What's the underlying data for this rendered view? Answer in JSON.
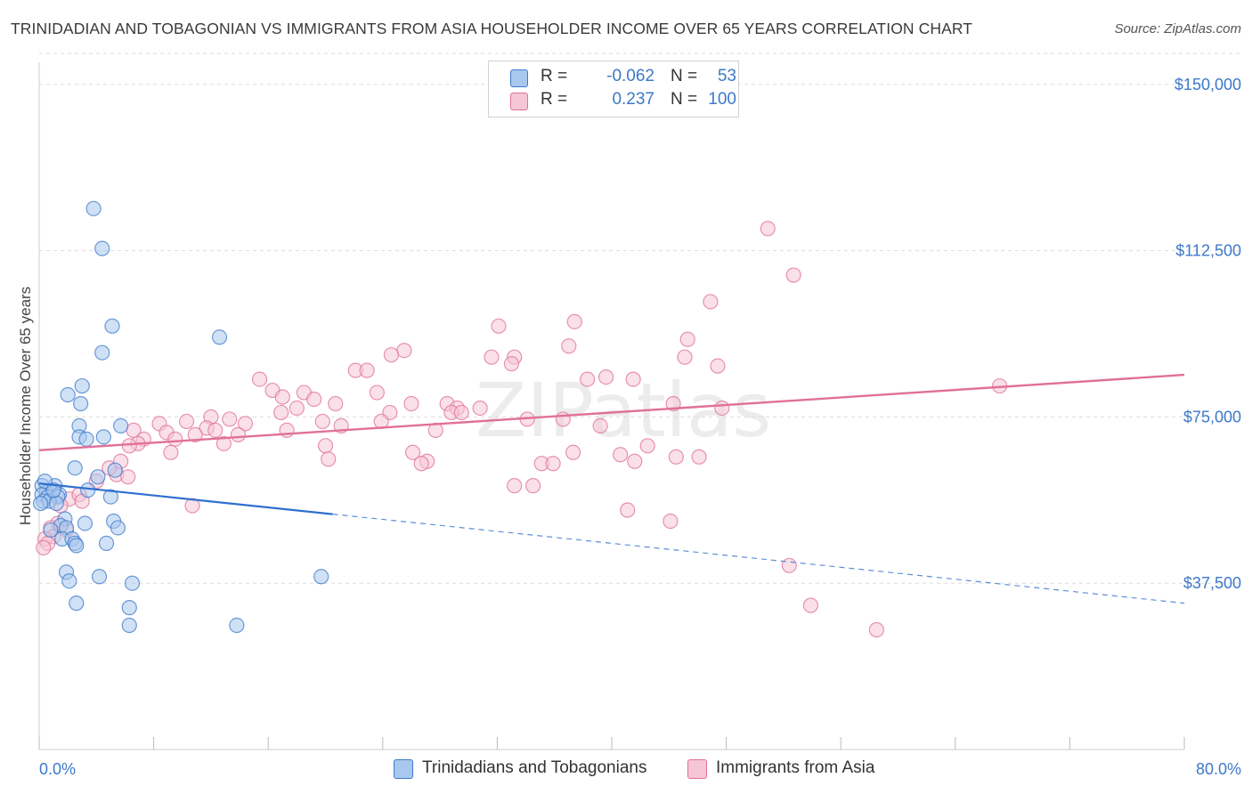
{
  "title": "TRINIDADIAN AND TOBAGONIAN VS IMMIGRANTS FROM ASIA HOUSEHOLDER INCOME OVER 65 YEARS CORRELATION CHART",
  "source": "Source: ZipAtlas.com",
  "watermark": "ZIPatlas",
  "colors": {
    "blue": "#3d79c9",
    "blue_fill": "#a9c8ef",
    "pink": "#e0709a",
    "pink_fill": "#f6b8cc"
  },
  "legend": {
    "rows": [
      {
        "r_label": "R =",
        "r_value": "-0.062",
        "n_label": "N =",
        "n_value": "53"
      },
      {
        "r_label": "R =",
        "r_value": "0.237",
        "n_label": "N =",
        "n_value": "100"
      }
    ]
  },
  "bottom_legend": {
    "series1": "Trinidadians and Tobagonians",
    "series2": "Immigrants from Asia"
  },
  "chart_data": {
    "type": "scatter",
    "title": "TRINIDADIAN AND TOBAGONIAN VS IMMIGRANTS FROM ASIA HOUSEHOLDER INCOME OVER 65 YEARS CORRELATION CHART",
    "xlabel": "",
    "ylabel": "Householder Income Over 65 years",
    "xlim": [
      0,
      80
    ],
    "ylim": [
      0,
      157000
    ],
    "x_tick_labels": [
      "0.0%",
      "80.0%"
    ],
    "y_ticks": [
      37500,
      75000,
      112500,
      150000
    ],
    "y_tick_labels": [
      "$37,500",
      "$75,000",
      "$112,500",
      "$150,000"
    ],
    "grid": true,
    "series": [
      {
        "name": "Trinidadians and Tobagonians",
        "color": "#3d79c9",
        "r": -0.062,
        "n": 53,
        "trend": {
          "x0": 0,
          "y0": 60000,
          "x1": 80,
          "y1": 33000,
          "solid_until": 20.5
        },
        "points": [
          [
            3.8,
            122000
          ],
          [
            4.4,
            113000
          ],
          [
            5.1,
            95500
          ],
          [
            4.4,
            89500
          ],
          [
            12.6,
            93000
          ],
          [
            3.0,
            82000
          ],
          [
            2.0,
            80000
          ],
          [
            2.9,
            78000
          ],
          [
            2.8,
            73000
          ],
          [
            2.8,
            70500
          ],
          [
            4.5,
            70500
          ],
          [
            3.3,
            70000
          ],
          [
            5.7,
            73000
          ],
          [
            2.5,
            63500
          ],
          [
            5.3,
            63000
          ],
          [
            4.1,
            61500
          ],
          [
            0.2,
            59500
          ],
          [
            1.1,
            59500
          ],
          [
            0.5,
            58000
          ],
          [
            0.9,
            58000
          ],
          [
            0.2,
            57500
          ],
          [
            1.4,
            57500
          ],
          [
            0.6,
            57000
          ],
          [
            1.3,
            57000
          ],
          [
            0.3,
            56000
          ],
          [
            0.7,
            56000
          ],
          [
            3.4,
            58500
          ],
          [
            5.0,
            57000
          ],
          [
            0.1,
            55500
          ],
          [
            1.2,
            55500
          ],
          [
            1.8,
            52000
          ],
          [
            5.2,
            51500
          ],
          [
            3.2,
            51000
          ],
          [
            1.5,
            50500
          ],
          [
            1.9,
            50000
          ],
          [
            5.5,
            50000
          ],
          [
            0.8,
            49500
          ],
          [
            1.6,
            47500
          ],
          [
            2.3,
            47500
          ],
          [
            2.5,
            46500
          ],
          [
            4.7,
            46500
          ],
          [
            2.6,
            46000
          ],
          [
            1.9,
            40000
          ],
          [
            4.2,
            39000
          ],
          [
            19.7,
            39000
          ],
          [
            2.1,
            38000
          ],
          [
            6.5,
            37500
          ],
          [
            2.6,
            33000
          ],
          [
            6.3,
            32000
          ],
          [
            6.3,
            28000
          ],
          [
            13.8,
            28000
          ],
          [
            0.4,
            60500
          ],
          [
            1.0,
            58500
          ]
        ]
      },
      {
        "name": "Immigrants from Asia",
        "color": "#e0709a",
        "r": 0.237,
        "n": 100,
        "trend": {
          "x0": 0,
          "y0": 67500,
          "x1": 80,
          "y1": 84500
        },
        "points": [
          [
            50.9,
            117500
          ],
          [
            52.7,
            107000
          ],
          [
            46.9,
            101000
          ],
          [
            32.1,
            95500
          ],
          [
            37.4,
            96500
          ],
          [
            25.5,
            90000
          ],
          [
            37.0,
            91000
          ],
          [
            45.3,
            92500
          ],
          [
            24.6,
            89000
          ],
          [
            31.6,
            88500
          ],
          [
            33.2,
            88500
          ],
          [
            45.1,
            88500
          ],
          [
            33.0,
            87000
          ],
          [
            47.4,
            86500
          ],
          [
            22.1,
            85500
          ],
          [
            22.9,
            85500
          ],
          [
            41.5,
            83500
          ],
          [
            15.4,
            83500
          ],
          [
            16.3,
            81000
          ],
          [
            18.5,
            80500
          ],
          [
            19.2,
            79000
          ],
          [
            17.0,
            79500
          ],
          [
            23.6,
            80500
          ],
          [
            38.3,
            83500
          ],
          [
            26.0,
            78000
          ],
          [
            20.7,
            78000
          ],
          [
            28.5,
            78000
          ],
          [
            29.2,
            77000
          ],
          [
            30.8,
            77000
          ],
          [
            24.5,
            76000
          ],
          [
            44.3,
            78000
          ],
          [
            47.7,
            77000
          ],
          [
            16.9,
            76000
          ],
          [
            13.3,
            74500
          ],
          [
            12.0,
            75000
          ],
          [
            14.4,
            73500
          ],
          [
            19.8,
            74000
          ],
          [
            21.1,
            73000
          ],
          [
            23.9,
            74000
          ],
          [
            28.8,
            76000
          ],
          [
            34.1,
            74500
          ],
          [
            36.6,
            74500
          ],
          [
            10.3,
            74000
          ],
          [
            11.7,
            72500
          ],
          [
            8.4,
            73500
          ],
          [
            6.6,
            72000
          ],
          [
            7.3,
            70000
          ],
          [
            6.9,
            69000
          ],
          [
            8.9,
            71500
          ],
          [
            9.5,
            70000
          ],
          [
            10.9,
            71000
          ],
          [
            12.3,
            72000
          ],
          [
            13.9,
            71000
          ],
          [
            17.3,
            72000
          ],
          [
            6.3,
            68500
          ],
          [
            9.2,
            67000
          ],
          [
            12.9,
            69000
          ],
          [
            20.0,
            68500
          ],
          [
            26.1,
            67000
          ],
          [
            27.1,
            65000
          ],
          [
            37.3,
            67000
          ],
          [
            40.6,
            66500
          ],
          [
            42.5,
            68500
          ],
          [
            44.5,
            66000
          ],
          [
            46.1,
            66000
          ],
          [
            41.6,
            65000
          ],
          [
            20.2,
            65500
          ],
          [
            26.7,
            64500
          ],
          [
            35.1,
            64500
          ],
          [
            35.9,
            64500
          ],
          [
            4.0,
            60500
          ],
          [
            5.4,
            62000
          ],
          [
            6.2,
            61500
          ],
          [
            4.9,
            63500
          ],
          [
            5.7,
            65000
          ],
          [
            33.2,
            59500
          ],
          [
            34.5,
            59500
          ],
          [
            2.1,
            56500
          ],
          [
            2.8,
            57500
          ],
          [
            3.0,
            56000
          ],
          [
            1.5,
            55000
          ],
          [
            10.7,
            55000
          ],
          [
            41.1,
            54000
          ],
          [
            44.1,
            51500
          ],
          [
            1.3,
            51000
          ],
          [
            0.8,
            50000
          ],
          [
            1.9,
            49500
          ],
          [
            1.0,
            48000
          ],
          [
            0.4,
            47500
          ],
          [
            0.6,
            46500
          ],
          [
            0.3,
            45500
          ],
          [
            52.4,
            41500
          ],
          [
            53.9,
            32500
          ],
          [
            58.5,
            27000
          ],
          [
            67.1,
            82000
          ],
          [
            29.5,
            76000
          ],
          [
            39.6,
            84000
          ],
          [
            18.0,
            77000
          ],
          [
            39.2,
            73000
          ],
          [
            27.7,
            72000
          ]
        ]
      }
    ]
  }
}
